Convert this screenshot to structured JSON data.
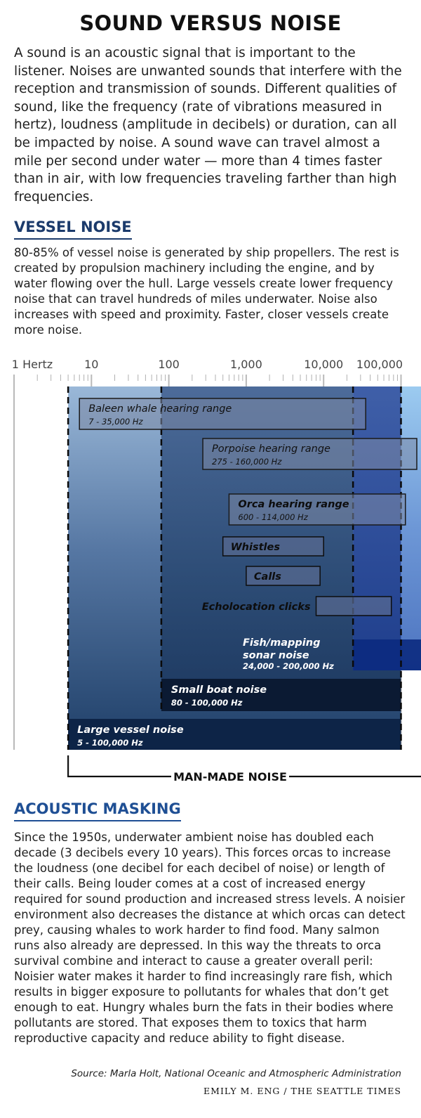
{
  "title": "SOUND VERSUS NOISE",
  "intro": "A sound is an acoustic signal that is important to the listener. Noises are unwanted sounds that interfere with the reception and transmission of sounds. Different qualities of sound, like the frequency (rate of vibrations measured in hertz), loudness (amplitude in decibels) or duration, can all be impacted by noise. A sound wave can travel almost a mile per second under water — more than 4 times faster than in air, with low frequencies traveling farther than high frequencies.",
  "vessel_noise": {
    "heading": "VESSEL NOISE",
    "text": "80-85% of vessel noise is generated by ship propellers. The rest is created by propulsion machinery including the engine, and by water flowing over the hull. Large vessels create lower frequency noise that can travel hundreds of miles underwater. Noise also increases with speed and proximity. Faster, closer vessels create more noise."
  },
  "acoustic_masking": {
    "heading": "ACOUSTIC MASKING",
    "text": "Since the 1950s, underwater ambient noise has doubled each decade (3 decibels every 10 years). This forces orcas to increase the loudness (one decibel for each decibel of noise) or length of their calls. Being louder comes at a cost of increased energy required for sound production and increased stress levels. A noisier environment also decreases the distance at which orcas can detect prey, causing whales to work harder to find food. Many salmon runs also already are depressed. In this way the threats to orca survival combine and interact to cause a greater overall peril: Noisier water makes it harder to find increasingly rare fish, which results in bigger exposure to pollutants for whales that don’t get enough to eat. Hungry whales burn the fats in their bodies where pollutants are stored. That exposes them to toxics that harm reproductive capacity and reduce ability to fight disease."
  },
  "source": "Source: Marla Holt, National Oceanic and Atmospheric Administration",
  "credit": "EMILY M. ENG / THE SEATTLE TIMES",
  "chart_data": {
    "type": "range",
    "x_scale": "log",
    "x_range": [
      1,
      200000
    ],
    "tick_labels": [
      {
        "value": 1,
        "label": "1 Hertz"
      },
      {
        "value": 10,
        "label": "10"
      },
      {
        "value": 100,
        "label": "100"
      },
      {
        "value": 1000,
        "label": "1,000"
      },
      {
        "value": 10000,
        "label": "10,000"
      },
      {
        "value": 100000,
        "label": "100,000"
      }
    ],
    "noise_ranges": [
      {
        "name": "Large vessel noise",
        "range_label": "5 - 100,000 Hz",
        "low": 5,
        "high": 100000,
        "color": "#2a4c78"
      },
      {
        "name": "Small boat noise",
        "range_label": "80 - 100,000 Hz",
        "low": 80,
        "high": 100000,
        "color": "#274a86"
      },
      {
        "name": "Fish/mapping sonar noise",
        "range_label": "24,000 - 200,000 Hz",
        "low": 24000,
        "high": 200000,
        "color": "#4470c0"
      }
    ],
    "hearing_ranges": [
      {
        "name": "Baleen whale hearing range",
        "range_label": "7 - 35,000 Hz",
        "low": 7,
        "high": 35000
      },
      {
        "name": "Porpoise hearing range",
        "range_label": "275 - 160,000 Hz",
        "low": 275,
        "high": 160000
      },
      {
        "name": "Orca hearing range",
        "range_label": "600 - 114,000 Hz",
        "low": 600,
        "high": 114000
      }
    ],
    "orca_sounds": [
      {
        "name": "Whistles",
        "low": 500,
        "high": 10000
      },
      {
        "name": "Calls",
        "low": 1000,
        "high": 9000
      },
      {
        "name": "Echolocation clicks",
        "low": 8000,
        "high": 75000
      }
    ],
    "bracket_label": "MAN-MADE NOISE",
    "colors": {
      "heading_blue": "#1b3a6b",
      "large_vessel": "#2a4c78",
      "small_boat": "#274a86",
      "sonar": "#4470c0",
      "label_band": "#0c1e3c",
      "sound_box": "#5c6f95"
    }
  }
}
